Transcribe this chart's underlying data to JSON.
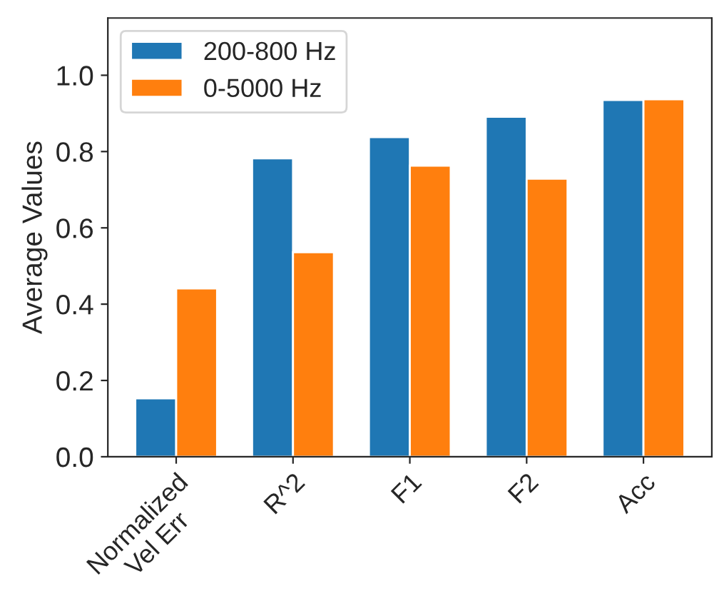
{
  "chart_data": {
    "type": "bar",
    "ylabel": "Average Values",
    "categories": [
      "Normalized\nVel Err",
      "R^2",
      "F1",
      "F2",
      "Acc"
    ],
    "series": [
      {
        "name": "200-800 Hz",
        "color": "#1f77b4",
        "values": [
          0.153,
          0.782,
          0.838,
          0.891,
          0.935
        ]
      },
      {
        "name": "0-5000 Hz",
        "color": "#ff7f0e",
        "values": [
          0.441,
          0.536,
          0.763,
          0.729,
          0.937
        ]
      }
    ],
    "ylim": [
      0,
      1.15
    ],
    "yticks": [
      {
        "value": 0,
        "label": "0.0"
      },
      0.2,
      0.4,
      0.6,
      0.8,
      {
        "value": 1,
        "label": "1.0"
      }
    ],
    "grid": false,
    "legend": "top left"
  }
}
